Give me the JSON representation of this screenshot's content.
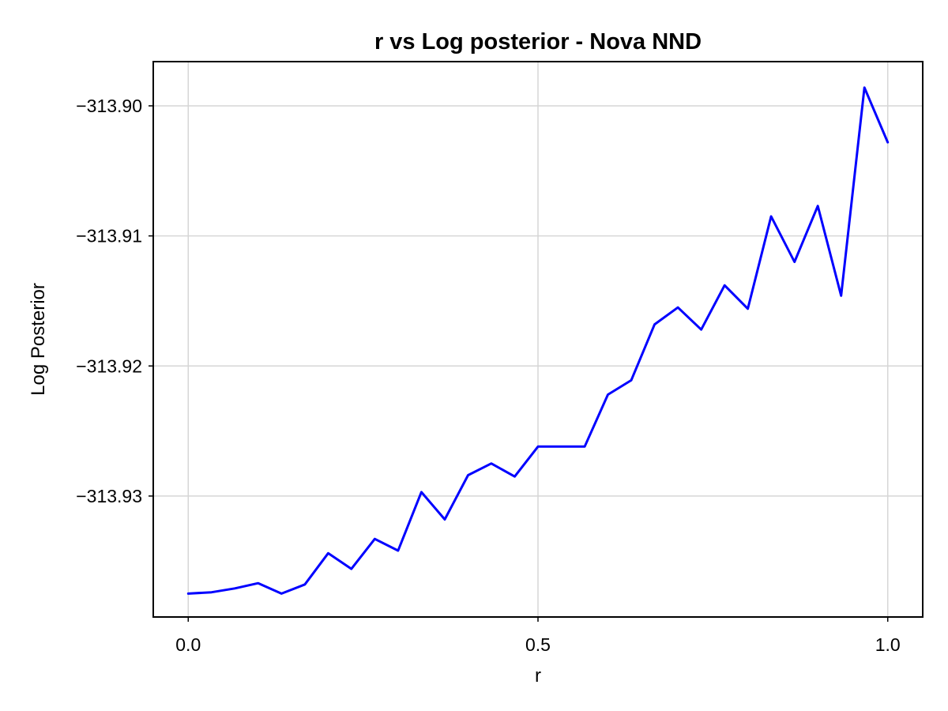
{
  "chart_data": {
    "type": "line",
    "title": "r vs Log posterior - Nova NND",
    "xlabel": "r",
    "ylabel": "Log Posterior",
    "xlim": [
      -0.05,
      1.05
    ],
    "ylim": [
      -313.9393,
      -313.8966
    ],
    "x_ticks": [
      0.0,
      0.5,
      1.0
    ],
    "x_tick_labels": [
      "0.0",
      "0.5",
      "1.0"
    ],
    "y_ticks": [
      -313.9,
      -313.91,
      -313.92,
      -313.93
    ],
    "y_tick_labels": [
      "−313.90",
      "−313.91",
      "−313.92",
      "−313.93"
    ],
    "grid": true,
    "legend": "none",
    "series": [
      {
        "color": "#0000ff",
        "x": [
          0.0,
          0.0333,
          0.0667,
          0.1,
          0.1333,
          0.1667,
          0.2,
          0.2333,
          0.2667,
          0.3,
          0.3333,
          0.3667,
          0.4,
          0.4333,
          0.4667,
          0.5,
          0.5333,
          0.5667,
          0.6,
          0.6333,
          0.6667,
          0.7,
          0.7333,
          0.7667,
          0.8,
          0.8333,
          0.8667,
          0.9,
          0.9333,
          0.9667,
          1.0
        ],
        "y": [
          -313.9375,
          -313.9374,
          -313.9371,
          -313.9367,
          -313.9375,
          -313.9368,
          -313.9344,
          -313.9356,
          -313.9333,
          -313.9342,
          -313.9297,
          -313.9318,
          -313.9284,
          -313.9275,
          -313.9285,
          -313.9262,
          -313.9262,
          -313.9262,
          -313.9222,
          -313.9211,
          -313.9168,
          -313.9155,
          -313.9172,
          -313.9138,
          -313.9156,
          -313.9085,
          -313.912,
          -313.9077,
          -313.9146,
          -313.8986,
          -313.9028
        ]
      }
    ]
  }
}
